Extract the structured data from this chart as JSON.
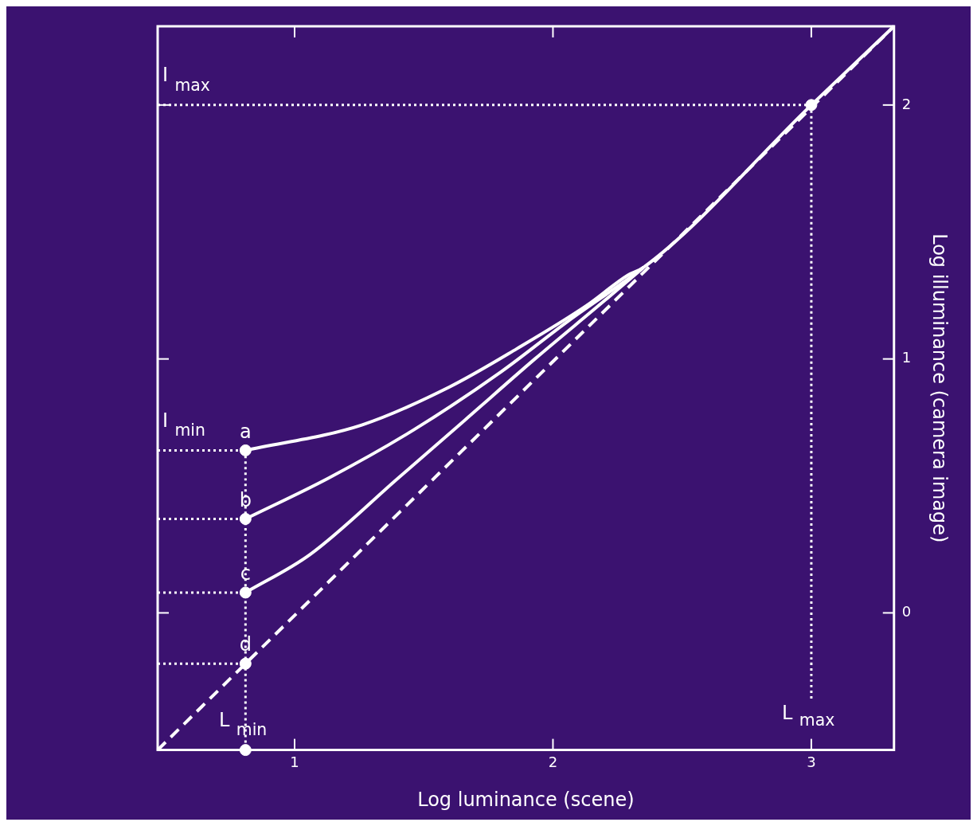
{
  "chart_data": {
    "type": "line",
    "xlabel": "Log luminance (scene)",
    "ylabel": "Log illuminance (camera image)",
    "xlim": [
      0.47,
      3.32
    ],
    "ylim": [
      -0.54,
      2.31
    ],
    "xticks": [
      1,
      2,
      3
    ],
    "yticks": [
      0,
      1,
      2
    ],
    "grid": false,
    "legend": false,
    "series": [
      {
        "line_style": "dashed",
        "color": "#ffffff",
        "x": [
          0.47,
          3.32
        ],
        "values": [
          -0.54,
          2.31
        ]
      },
      {
        "line_style": "solid",
        "color": "#ffffff",
        "x": [
          0.81,
          1.26,
          1.6,
          1.86,
          2.13,
          2.29,
          2.35,
          3.0,
          3.32
        ],
        "values": [
          0.64,
          0.74,
          0.89,
          1.04,
          1.21,
          1.33,
          1.36,
          2.0,
          2.31
        ]
      },
      {
        "line_style": "solid",
        "color": "#ffffff",
        "x": [
          0.81,
          1.13,
          1.46,
          1.8,
          2.06,
          2.27,
          2.35
        ],
        "values": [
          0.37,
          0.53,
          0.72,
          0.95,
          1.15,
          1.3,
          1.36
        ]
      },
      {
        "line_style": "solid",
        "color": "#ffffff",
        "x": [
          0.81,
          1.06,
          1.4,
          1.66,
          1.93,
          2.2,
          2.35
        ],
        "values": [
          0.08,
          0.23,
          0.53,
          0.76,
          1.0,
          1.23,
          1.36
        ]
      },
      {
        "type": "line",
        "line_style": "dotted",
        "color": "#ffffff",
        "x": [
          0.47,
          0.81
        ],
        "values": [
          0.64,
          0.64
        ]
      },
      {
        "type": "line",
        "line_style": "dotted",
        "color": "#ffffff",
        "x": [
          0.47,
          0.81
        ],
        "values": [
          0.37,
          0.37
        ]
      },
      {
        "type": "line",
        "line_style": "dotted",
        "color": "#ffffff",
        "x": [
          0.47,
          0.81
        ],
        "values": [
          0.08,
          0.08
        ]
      },
      {
        "type": "line",
        "line_style": "dotted",
        "color": "#ffffff",
        "x": [
          0.47,
          0.81
        ],
        "values": [
          -0.2,
          -0.2
        ]
      },
      {
        "type": "line",
        "line_style": "dotted",
        "color": "#ffffff",
        "x": [
          0.81,
          0.81
        ],
        "values": [
          0.64,
          -0.54
        ]
      },
      {
        "type": "line",
        "line_style": "dotted",
        "color": "#ffffff",
        "x": [
          0.47,
          3.0
        ],
        "values": [
          2.0,
          2.0
        ]
      },
      {
        "type": "line",
        "line_style": "dotted",
        "color": "#ffffff",
        "x": [
          3.0,
          3.0
        ],
        "values": [
          2.0,
          -0.35
        ]
      },
      {
        "type": "scatter",
        "marker": "circle",
        "color": "#ffffff",
        "x": [
          0.81,
          0.81,
          0.81,
          0.81,
          0.81,
          3.0
        ],
        "values": [
          0.64,
          0.37,
          0.08,
          -0.2,
          -0.54,
          2.0
        ]
      }
    ],
    "annotations": [
      {
        "text": "I$_{max}$",
        "x": 0.47,
        "y": 2.0
      },
      {
        "text": "I$_{min}$",
        "x": 0.47,
        "y": 0.64
      },
      {
        "text": "a",
        "x": 0.81,
        "y": 0.64
      },
      {
        "text": "b",
        "x": 0.81,
        "y": 0.37
      },
      {
        "text": "c",
        "x": 0.81,
        "y": 0.08
      },
      {
        "text": "d",
        "x": 0.81,
        "y": -0.2
      },
      {
        "text": "L$_{min}$",
        "x": 0.81,
        "y": -0.54
      },
      {
        "text": "L$_{max}$",
        "x": 3.0,
        "y": -0.35
      }
    ]
  }
}
